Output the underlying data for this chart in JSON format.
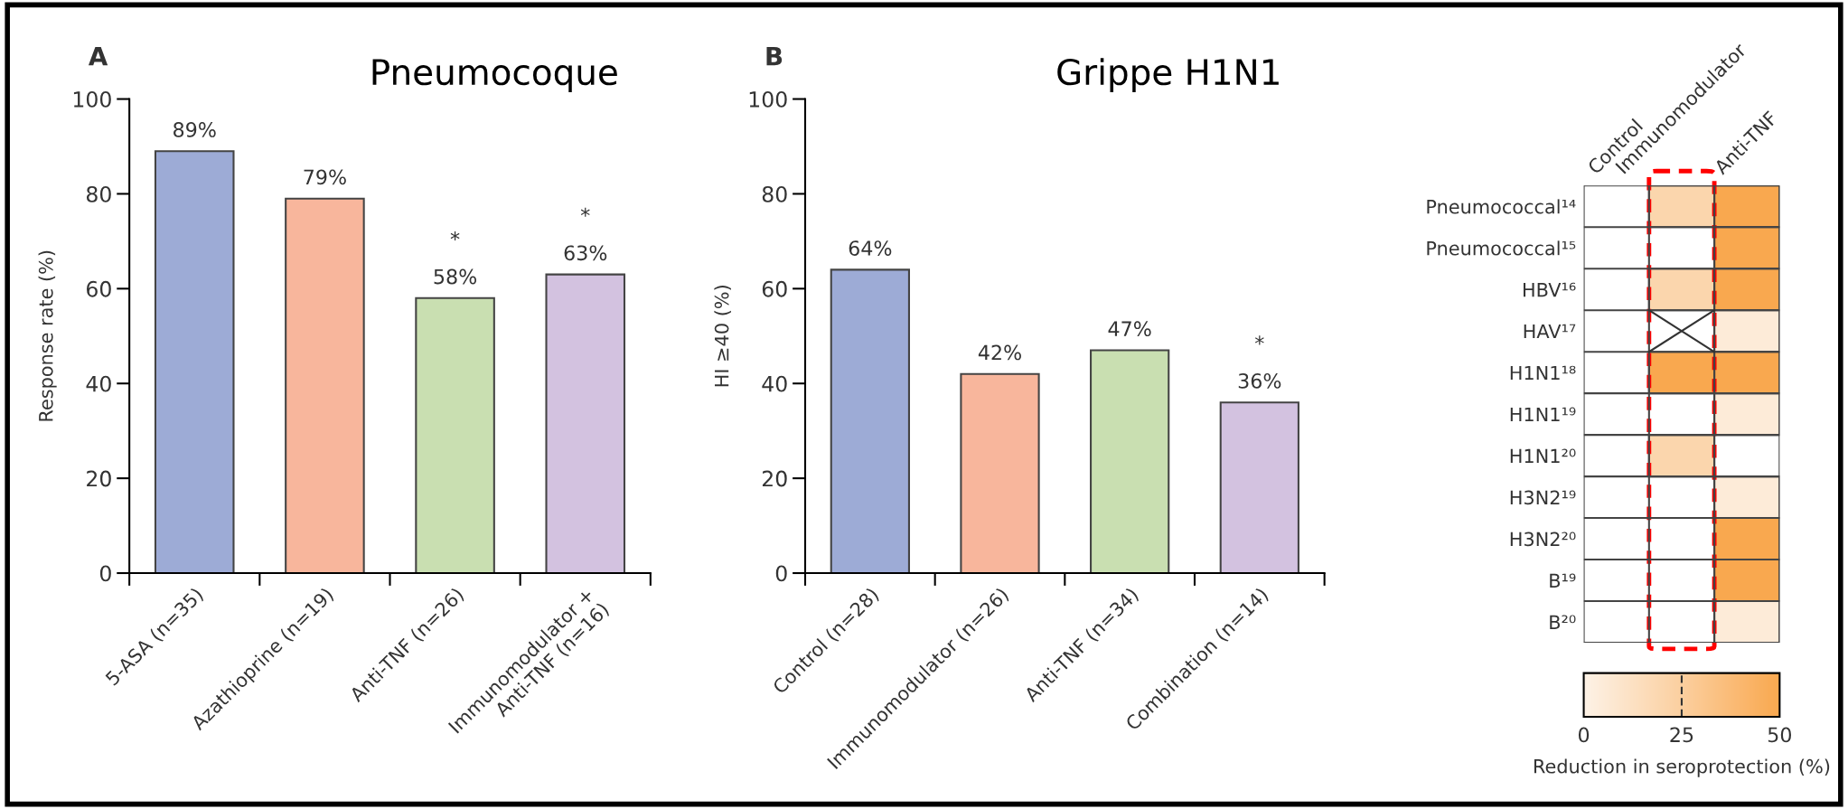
{
  "chart_data": [
    {
      "type": "bar",
      "title": "Pneumocoque",
      "ylabel": "Response rate (%)",
      "categories": [
        "5-ASA (n=35)",
        "Azathioprine (n=19)",
        "Anti-TNF (n=26)",
        "Immunomodulator +\nAnti-TNF (n=16)"
      ],
      "values": [
        89,
        79,
        58,
        63
      ],
      "colors": [
        "#9dabd6",
        "#f8b69c",
        "#c9dfb1",
        "#d3c2e0"
      ],
      "value_labels": [
        "89%",
        "79%",
        "58%",
        "63%"
      ],
      "ylim": [
        0,
        100
      ],
      "yticks": [
        0,
        20,
        40,
        60,
        80,
        100
      ],
      "grid": false,
      "legend": false,
      "annotations": [
        "A",
        {
          "text": "*",
          "x": "Anti-TNF (n=26)",
          "y": 58
        },
        {
          "text": "*",
          "x": "Immunomodulator +\nAnti-TNF (n=16)",
          "y": 63
        }
      ]
    },
    {
      "type": "bar",
      "title": "Grippe H1N1",
      "ylabel": "HI ≥40 (%)",
      "categories": [
        "Control (n=28)",
        "Immunomodulator (n=26)",
        "Anti-TNF (n=34)",
        "Combination (n=14)"
      ],
      "values": [
        64,
        42,
        47,
        36
      ],
      "colors": [
        "#9dabd6",
        "#f8b69c",
        "#c9dfb1",
        "#d3c2e0"
      ],
      "value_labels": [
        "64%",
        "42%",
        "47%",
        "36%"
      ],
      "ylim": [
        0,
        100
      ],
      "yticks": [
        0,
        20,
        40,
        60,
        80,
        100
      ],
      "grid": false,
      "legend": false,
      "annotations": [
        "B",
        {
          "text": "*",
          "x": "Combination (n=14)",
          "y": 36
        }
      ]
    },
    {
      "type": "heatmap",
      "clabel": "Reduction in seroprotection (%)",
      "categories": [
        "Control",
        "Immunomodulator",
        "Anti-TNF"
      ],
      "y_categories": [
        "Pneumococcal¹⁴",
        "Pneumococcal¹⁵",
        "HBV¹⁶",
        "HAV¹⁷",
        "H1N1¹⁸",
        "H1N1¹⁹",
        "H1N1²⁰",
        "H3N2¹⁹",
        "H3N2²⁰",
        "B¹⁹",
        "B²⁰"
      ],
      "cells": [
        [
          null,
          20,
          50
        ],
        [
          null,
          null,
          50
        ],
        [
          null,
          20,
          50
        ],
        [
          null,
          null,
          5
        ],
        [
          null,
          50,
          50
        ],
        [
          null,
          null,
          5
        ],
        [
          null,
          20,
          null
        ],
        [
          null,
          null,
          5
        ],
        [
          null,
          null,
          50
        ],
        [
          null,
          null,
          50
        ],
        [
          null,
          null,
          5
        ]
      ],
      "clim": [
        0,
        50
      ],
      "cticks": [
        0,
        25,
        50
      ]
    }
  ]
}
